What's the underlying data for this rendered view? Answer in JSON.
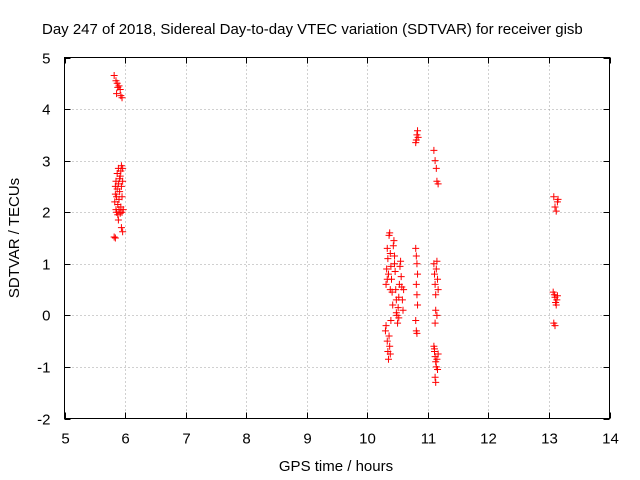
{
  "chart_data": {
    "type": "scatter",
    "title": "Day 247 of 2018, Sidereal Day-to-day VTEC variation (SDTVAR) for receiver gisb",
    "xlabel": "GPS time / hours",
    "ylabel": "SDTVAR / TECUs",
    "xlim": [
      5,
      14
    ],
    "ylim": [
      -2,
      5
    ],
    "xticks": [
      5,
      6,
      7,
      8,
      9,
      10,
      11,
      12,
      13,
      14
    ],
    "yticks": [
      -2,
      -1,
      0,
      1,
      2,
      3,
      4,
      5
    ],
    "grid": true,
    "marker": "+",
    "color": "#ff0000",
    "series": [
      {
        "name": "SDTVAR",
        "points": [
          [
            5.82,
            4.65
          ],
          [
            5.85,
            4.55
          ],
          [
            5.87,
            4.5
          ],
          [
            5.9,
            4.45
          ],
          [
            5.88,
            4.42
          ],
          [
            5.92,
            4.38
          ],
          [
            5.86,
            4.3
          ],
          [
            5.93,
            4.26
          ],
          [
            5.95,
            4.22
          ],
          [
            5.83,
            2.2
          ],
          [
            5.84,
            2.35
          ],
          [
            5.84,
            2.5
          ],
          [
            5.85,
            2.05
          ],
          [
            5.85,
            2.6
          ],
          [
            5.86,
            2.3
          ],
          [
            5.86,
            2.0
          ],
          [
            5.87,
            2.45
          ],
          [
            5.87,
            2.75
          ],
          [
            5.88,
            2.15
          ],
          [
            5.88,
            1.95
          ],
          [
            5.89,
            2.55
          ],
          [
            5.89,
            2.85
          ],
          [
            5.9,
            2.25
          ],
          [
            5.9,
            2.05
          ],
          [
            5.91,
            2.65
          ],
          [
            5.91,
            2.4
          ],
          [
            5.92,
            1.98
          ],
          [
            5.92,
            2.7
          ],
          [
            5.93,
            2.8
          ],
          [
            5.93,
            2.1
          ],
          [
            5.94,
            2.9
          ],
          [
            5.94,
            2.5
          ],
          [
            5.95,
            2.3
          ],
          [
            5.95,
            2.0
          ],
          [
            5.96,
            2.6
          ],
          [
            5.96,
            2.85
          ],
          [
            5.97,
            2.05
          ],
          [
            5.89,
            1.85
          ],
          [
            5.94,
            1.7
          ],
          [
            5.96,
            1.62
          ],
          [
            5.82,
            1.52
          ],
          [
            5.84,
            1.5
          ],
          [
            10.3,
            -0.3
          ],
          [
            10.31,
            -0.2
          ],
          [
            10.33,
            -0.5
          ],
          [
            10.34,
            -0.7
          ],
          [
            10.35,
            -0.85
          ],
          [
            10.36,
            -0.4
          ],
          [
            10.37,
            -0.6
          ],
          [
            10.38,
            -0.75
          ],
          [
            10.39,
            -0.1
          ],
          [
            10.31,
            0.6
          ],
          [
            10.32,
            0.9
          ],
          [
            10.33,
            1.3
          ],
          [
            10.34,
            1.1
          ],
          [
            10.35,
            0.8
          ],
          [
            10.36,
            1.55
          ],
          [
            10.37,
            1.6
          ],
          [
            10.38,
            1.2
          ],
          [
            10.39,
            0.95
          ],
          [
            10.4,
            0.7
          ],
          [
            10.41,
            0.45
          ],
          [
            10.42,
            0.2
          ],
          [
            10.43,
            1.35
          ],
          [
            10.44,
            1.45
          ],
          [
            10.45,
            1.15
          ],
          [
            10.46,
            0.85
          ],
          [
            10.47,
            0.5
          ],
          [
            10.48,
            0.3
          ],
          [
            10.49,
            0.0
          ],
          [
            10.5,
            -0.15
          ],
          [
            10.51,
            0.15
          ],
          [
            10.52,
            0.35
          ],
          [
            10.53,
            0.6
          ],
          [
            10.54,
            0.95
          ],
          [
            10.55,
            1.05
          ],
          [
            10.56,
            0.75
          ],
          [
            10.57,
            0.55
          ],
          [
            10.58,
            0.3
          ],
          [
            10.59,
            0.1
          ],
          [
            10.6,
            0.5
          ],
          [
            10.52,
            -0.05
          ],
          [
            10.48,
            0.05
          ],
          [
            10.45,
            1.0
          ],
          [
            10.38,
            0.5
          ],
          [
            10.33,
            0.7
          ],
          [
            10.8,
            1.3
          ],
          [
            10.81,
            1.15
          ],
          [
            10.82,
            1.0
          ],
          [
            10.83,
            0.8
          ],
          [
            10.81,
            0.6
          ],
          [
            10.82,
            0.4
          ],
          [
            10.83,
            0.2
          ],
          [
            10.8,
            -0.1
          ],
          [
            10.81,
            -0.3
          ],
          [
            10.82,
            -0.35
          ],
          [
            10.81,
            3.4
          ],
          [
            10.82,
            3.5
          ],
          [
            10.83,
            3.58
          ],
          [
            10.8,
            3.35
          ],
          [
            10.84,
            3.45
          ],
          [
            11.1,
            3.2
          ],
          [
            11.12,
            3.0
          ],
          [
            11.14,
            2.85
          ],
          [
            11.15,
            2.6
          ],
          [
            11.17,
            2.55
          ],
          [
            11.1,
            1.0
          ],
          [
            11.11,
            0.8
          ],
          [
            11.12,
            0.6
          ],
          [
            11.13,
            0.4
          ],
          [
            11.14,
            0.9
          ],
          [
            11.15,
            1.05
          ],
          [
            11.16,
            0.7
          ],
          [
            11.17,
            0.5
          ],
          [
            11.13,
            0.1
          ],
          [
            11.15,
            0.0
          ],
          [
            11.12,
            -0.15
          ],
          [
            11.1,
            -0.6
          ],
          [
            11.11,
            -0.7
          ],
          [
            11.12,
            -0.8
          ],
          [
            11.13,
            -0.9
          ],
          [
            11.14,
            -1.0
          ],
          [
            11.15,
            -0.85
          ],
          [
            11.16,
            -1.05
          ],
          [
            11.12,
            -1.2
          ],
          [
            11.13,
            -1.3
          ],
          [
            11.17,
            -0.75
          ],
          [
            11.11,
            -0.65
          ],
          [
            13.08,
            2.3
          ],
          [
            13.1,
            2.1
          ],
          [
            13.12,
            2.02
          ],
          [
            13.14,
            2.2
          ],
          [
            13.15,
            2.25
          ],
          [
            13.07,
            0.45
          ],
          [
            13.09,
            0.4
          ],
          [
            13.1,
            0.35
          ],
          [
            13.11,
            0.25
          ],
          [
            13.12,
            0.2
          ],
          [
            13.13,
            0.3
          ],
          [
            13.14,
            0.38
          ],
          [
            13.08,
            -0.15
          ],
          [
            13.1,
            -0.2
          ]
        ]
      }
    ]
  }
}
